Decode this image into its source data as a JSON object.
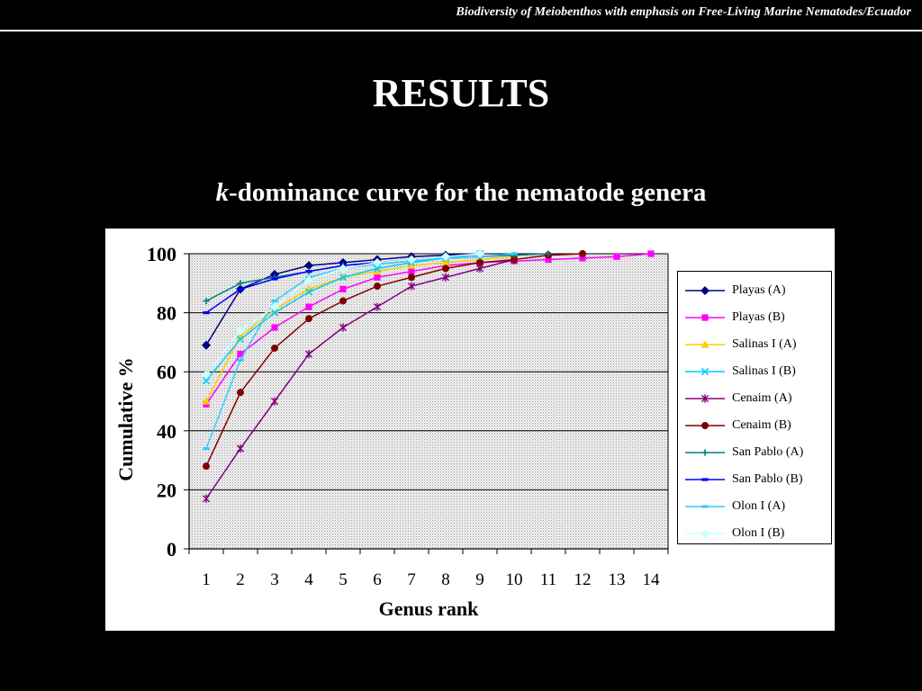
{
  "header": {
    "text": "Biodiversity of Meiobenthos with emphasis on Free-Living Marine Nematodes/Ecuador"
  },
  "slide": {
    "title": "RESULTS"
  },
  "chart_title": {
    "italic": "k",
    "rest": "-dominance curve for the nematode genera"
  },
  "chart_data": {
    "type": "line",
    "xlabel": "Genus rank",
    "ylabel": "Cumulative %",
    "xlim": [
      0.5,
      14.5
    ],
    "ylim": [
      0,
      100
    ],
    "x_ticks": [
      1,
      2,
      3,
      4,
      5,
      6,
      7,
      8,
      9,
      10,
      11,
      12,
      13,
      14
    ],
    "y_ticks": [
      0,
      20,
      40,
      60,
      80,
      100
    ],
    "grid": "horizontal",
    "legend_position": "right",
    "series": [
      {
        "name": "Playas (A)",
        "color": "#000080",
        "marker": "diamond",
        "x": [
          1,
          2,
          3,
          4,
          5,
          6,
          7,
          8,
          9
        ],
        "y": [
          69,
          88,
          93,
          96,
          97,
          98,
          99,
          99.5,
          100
        ]
      },
      {
        "name": "Playas (B)",
        "color": "#ff00ff",
        "marker": "square",
        "x": [
          1,
          2,
          3,
          4,
          5,
          6,
          7,
          8,
          9,
          10,
          11,
          12,
          13,
          14
        ],
        "y": [
          49,
          66,
          75,
          82,
          88,
          92,
          94,
          96,
          97,
          97.5,
          98,
          98.5,
          99,
          100
        ]
      },
      {
        "name": "Salinas I (A)",
        "color": "#ffcc00",
        "marker": "triangle",
        "x": [
          1,
          2,
          3,
          4,
          5,
          6,
          7,
          8,
          9,
          10
        ],
        "y": [
          50,
          72,
          81,
          88,
          92,
          94,
          96,
          97,
          98,
          99
        ]
      },
      {
        "name": "Salinas I (B)",
        "color": "#00ccff",
        "marker": "x",
        "x": [
          1,
          2,
          3,
          4,
          5,
          6,
          7,
          8,
          9
        ],
        "y": [
          57,
          71,
          80,
          87,
          92,
          95,
          97,
          98.5,
          100
        ]
      },
      {
        "name": "Cenaim (A)",
        "color": "#800080",
        "marker": "star",
        "x": [
          1,
          2,
          3,
          4,
          5,
          6,
          7,
          8,
          9,
          10
        ],
        "y": [
          17,
          34,
          50,
          66,
          75,
          82,
          89,
          92,
          95,
          98
        ]
      },
      {
        "name": "Cenaim (B)",
        "color": "#800000",
        "marker": "circle",
        "x": [
          1,
          2,
          3,
          4,
          5,
          6,
          7,
          8,
          9,
          10,
          11,
          12
        ],
        "y": [
          28,
          53,
          68,
          78,
          84,
          89,
          92,
          95,
          97,
          98,
          99.5,
          100
        ]
      },
      {
        "name": "San Pablo (A)",
        "color": "#008080",
        "marker": "plus",
        "x": [
          1,
          2,
          3,
          4,
          5,
          6,
          7,
          8,
          9,
          10,
          11
        ],
        "y": [
          84,
          90,
          92,
          94,
          96,
          97,
          98,
          98.5,
          99,
          99.5,
          100
        ]
      },
      {
        "name": "San Pablo (B)",
        "color": "#0000ff",
        "marker": "dash",
        "x": [
          1,
          2,
          3,
          4,
          5,
          6,
          7,
          8,
          9
        ],
        "y": [
          80,
          88,
          91.5,
          94,
          96,
          97,
          98,
          99,
          100
        ]
      },
      {
        "name": "Olon I (A)",
        "color": "#33ccff",
        "marker": "dash",
        "x": [
          1,
          2,
          3,
          4,
          5,
          6,
          7,
          8,
          9,
          10
        ],
        "y": [
          34,
          64,
          84,
          92,
          95,
          96.5,
          97.5,
          98.5,
          99,
          100
        ]
      },
      {
        "name": "Olon I (B)",
        "color": "#ccffff",
        "marker": "diamond",
        "x": [
          1,
          2,
          3,
          4,
          5,
          6,
          7,
          8,
          9
        ],
        "y": [
          59,
          74,
          82,
          91,
          95,
          97,
          98,
          99,
          100
        ]
      }
    ]
  }
}
